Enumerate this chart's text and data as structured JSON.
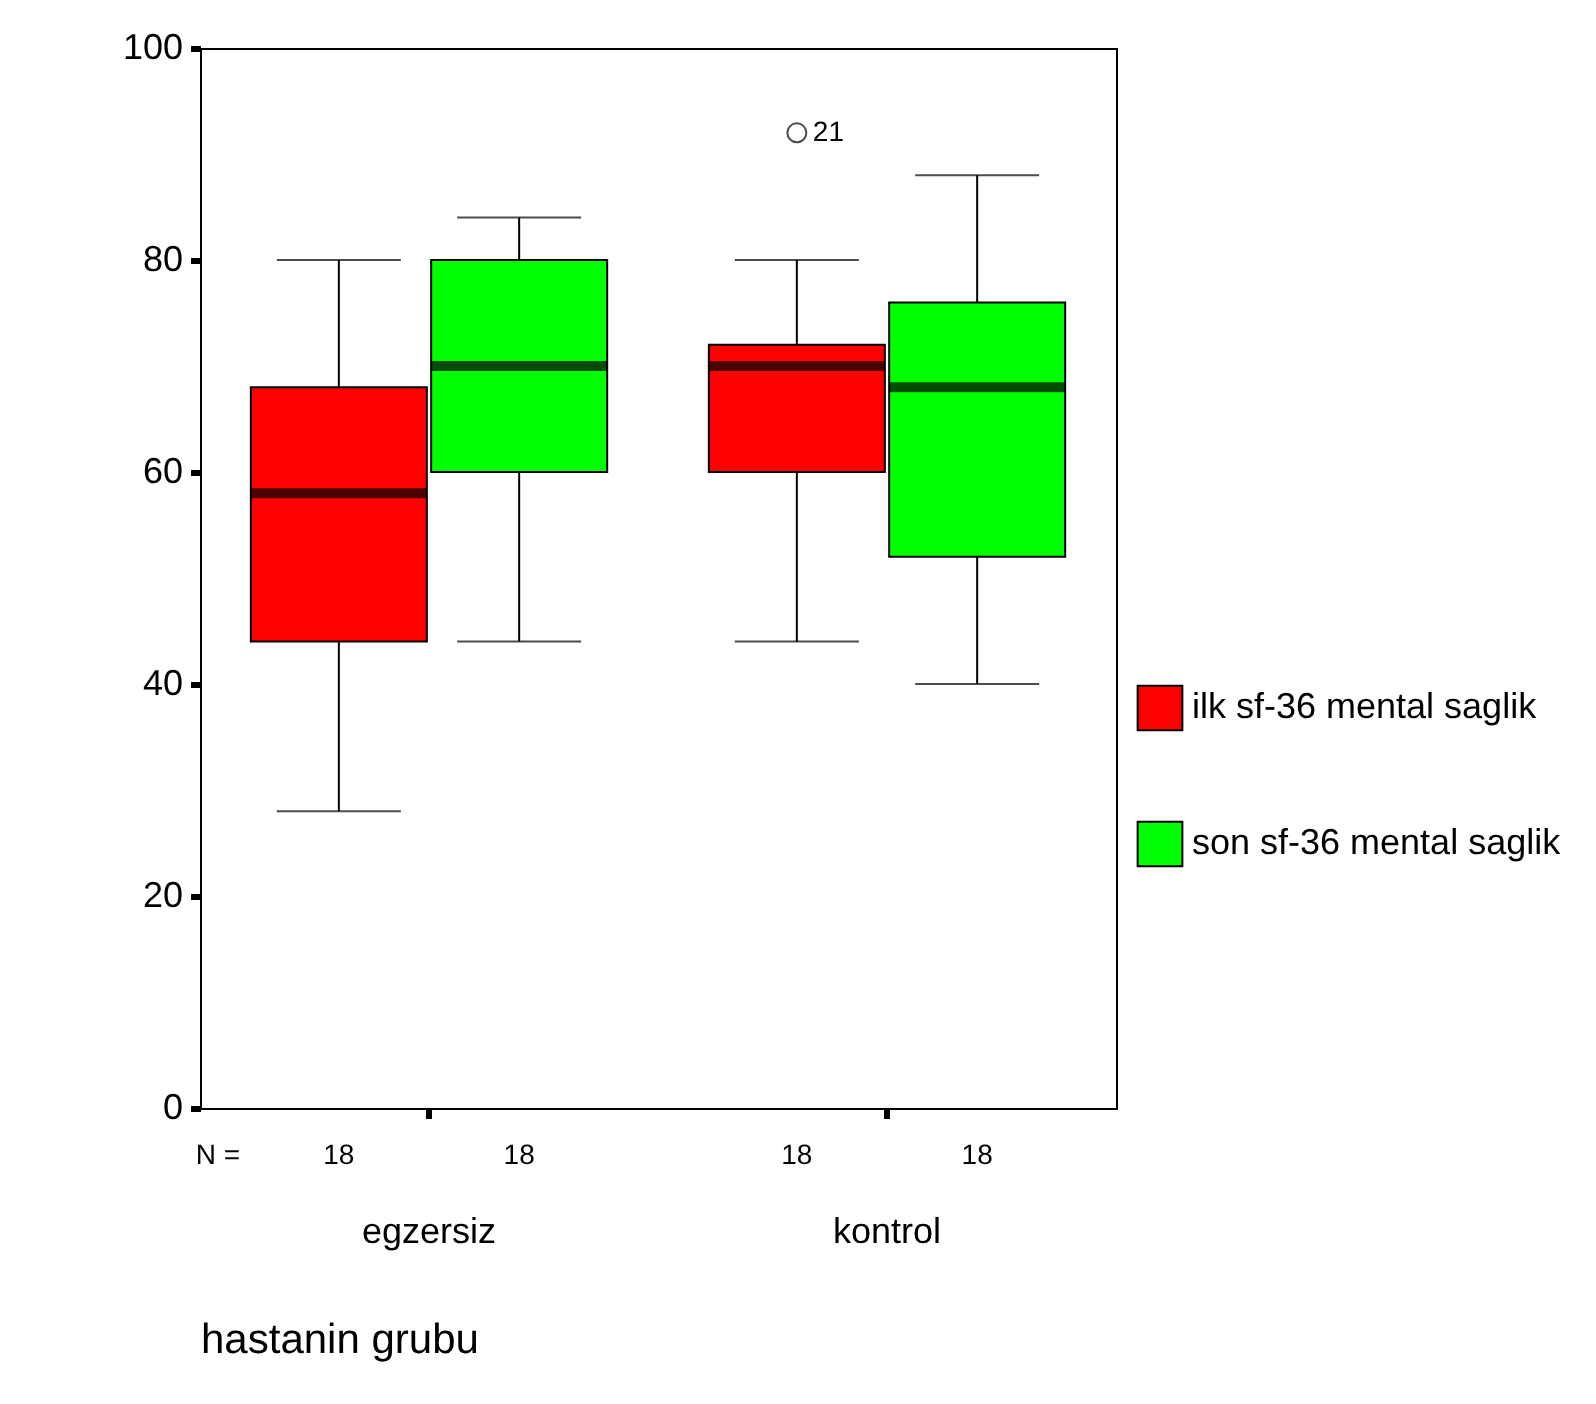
{
  "chart_data": {
    "type": "box",
    "xlabel": "hastanin grubu",
    "categories": [
      "egzersiz",
      "kontrol"
    ],
    "series": [
      {
        "name": "ilk sf-36 mental saglik",
        "color": "#ff0000",
        "boxes": [
          {
            "low": 28,
            "q1": 44,
            "median": 58,
            "q3": 68,
            "high": 80
          },
          {
            "low": 44,
            "q1": 60,
            "median": 70,
            "q3": 72,
            "high": 80,
            "outliers": [
              92
            ]
          }
        ]
      },
      {
        "name": "son sf-36 mental saglik",
        "color": "#00ff00",
        "boxes": [
          {
            "low": 44,
            "q1": 60,
            "median": 70,
            "q3": 80,
            "high": 84
          },
          {
            "low": 40,
            "q1": 52,
            "median": 68,
            "q3": 76,
            "high": 88
          }
        ]
      }
    ],
    "ylim": [
      0,
      100
    ],
    "yticks": [
      0,
      20,
      40,
      60,
      80,
      100
    ],
    "legend": "right",
    "annotations": [
      "21",
      "N =",
      "18",
      "18",
      "18",
      "18"
    ]
  }
}
